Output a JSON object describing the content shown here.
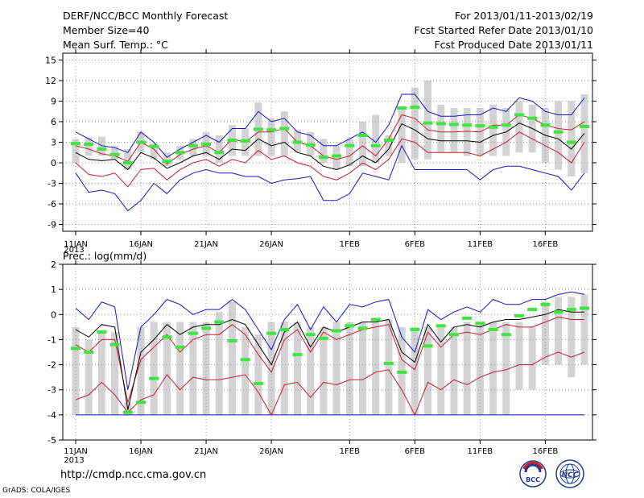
{
  "header": {
    "title": "DERF/NCC/BCC Monthly Forecast",
    "member_size": "Member Size=40",
    "variable": "Mean Surf. Temp.: °C",
    "period": "For 2013/01/11-2013/02/19",
    "start_date": "Fcst Started Refer Date 2013/01/10",
    "produced_date": "Fcst Produced Date 2013/01/11"
  },
  "footer": {
    "url": "http://cmdp.ncc.cma.gov.cn",
    "credit": "GrADS: COLA/IGES",
    "logo_left": "BCC",
    "logo_right": "NCC"
  },
  "colors": {
    "box": "#d3d3d6",
    "green": "#3ee63e",
    "blue": "#1414c8",
    "red": "#cc1c2c",
    "mean": "#000000",
    "grid": "#999999"
  },
  "chart_data": [
    {
      "type": "box-line",
      "title": "Mean Surf. Temp.: °C",
      "ylim": [
        -10,
        16
      ],
      "yticks": [
        -9,
        -6,
        -3,
        0,
        3,
        6,
        9,
        12,
        15
      ],
      "x_tick_labels": [
        "11JAN",
        "16JAN",
        "21JAN",
        "26JAN",
        "1FEB",
        "6FEB",
        "11FEB",
        "16FEB"
      ],
      "x_tick_days": [
        1,
        6,
        11,
        16,
        22,
        27,
        32,
        37
      ],
      "x_sublabel": "2013",
      "days": 40,
      "box_min": [
        0.0,
        1.0,
        1.0,
        0.5,
        -1.0,
        1.5,
        0.5,
        -0.5,
        0.5,
        1.0,
        1.0,
        0.0,
        1.0,
        1.0,
        1.0,
        1.0,
        1.0,
        1.5,
        1.0,
        0.0,
        -1.0,
        -0.5,
        -0.5,
        0.0,
        1.0,
        0.0,
        0.5,
        0.5,
        1.5,
        1.5,
        1.0,
        1.0,
        1.0,
        1.0,
        1.5,
        1.5,
        0.0,
        -1.0,
        -2.0,
        -1.5
      ],
      "box_max": [
        3.5,
        3.7,
        3.8,
        2.5,
        2.0,
        4.5,
        2.8,
        1.5,
        2.5,
        3.5,
        4.5,
        4.0,
        5.5,
        5.0,
        8.8,
        6.5,
        7.5,
        4.8,
        4.5,
        3.5,
        2.5,
        3.5,
        6.0,
        7.0,
        4.0,
        8.0,
        11.0,
        12.0,
        8.5,
        8.0,
        8.0,
        8.0,
        8.5,
        8.0,
        9.0,
        8.5,
        8.0,
        9.0,
        9.0,
        10.0
      ],
      "obs_green": [
        2.8,
        2.7,
        2.0,
        1.2,
        0.0,
        3.0,
        2.4,
        0.2,
        1.5,
        2.5,
        2.7,
        1.5,
        3.3,
        3.2,
        4.9,
        4.8,
        5.0,
        3.0,
        2.6,
        0.8,
        1.0,
        2.5,
        4.0,
        2.5,
        3.3,
        8.0,
        8.1,
        5.8,
        5.7,
        5.6,
        5.5,
        5.4,
        5.2,
        5.5,
        7.0,
        6.5,
        5.5,
        4.5,
        3.0,
        5.3
      ],
      "upper_blue": [
        4.5,
        3.5,
        2.5,
        2.2,
        1.5,
        4.5,
        3.0,
        0.8,
        2.0,
        3.0,
        4.0,
        3.0,
        5.0,
        5.0,
        7.5,
        6.0,
        6.5,
        4.5,
        4.0,
        2.5,
        2.5,
        3.5,
        4.5,
        3.0,
        5.5,
        10.0,
        10.0,
        7.5,
        6.8,
        6.8,
        7.0,
        7.0,
        8.0,
        7.5,
        9.5,
        9.0,
        7.5,
        7.0,
        7.0,
        9.5
      ],
      "upper_red": [
        2.5,
        2.0,
        1.3,
        1.0,
        0.2,
        3.0,
        2.0,
        -0.2,
        1.2,
        2.0,
        2.5,
        1.5,
        3.5,
        3.0,
        4.5,
        4.5,
        5.0,
        3.0,
        2.5,
        1.0,
        0.5,
        1.0,
        2.5,
        1.0,
        3.5,
        7.0,
        6.5,
        4.8,
        4.5,
        4.5,
        4.6,
        4.5,
        5.5,
        5.5,
        7.0,
        6.5,
        5.5,
        5.0,
        4.8,
        6.0
      ],
      "mean_black": [
        1.5,
        0.5,
        0.3,
        0.5,
        -1.0,
        1.5,
        0.7,
        -0.8,
        0.0,
        1.0,
        1.5,
        0.5,
        2.0,
        1.8,
        3.5,
        2.5,
        3.0,
        1.5,
        1.0,
        -0.5,
        -1.0,
        -0.3,
        1.0,
        0.0,
        2.0,
        5.7,
        4.8,
        3.5,
        3.2,
        3.2,
        3.2,
        3.0,
        4.0,
        4.5,
        5.8,
        5.0,
        4.0,
        3.5,
        2.0,
        4.3
      ],
      "lower_red": [
        0.0,
        -1.7,
        -2.0,
        -1.5,
        -3.5,
        -1.0,
        -0.8,
        -2.5,
        -1.0,
        0.0,
        0.5,
        -0.5,
        0.5,
        0.0,
        1.8,
        0.5,
        1.0,
        0.0,
        -0.5,
        -2.0,
        -2.5,
        -1.5,
        0.0,
        -1.0,
        0.5,
        3.5,
        3.0,
        1.5,
        1.5,
        1.5,
        1.5,
        1.0,
        2.0,
        3.0,
        4.5,
        3.5,
        2.5,
        1.5,
        0.0,
        3.0
      ],
      "lower_blue": [
        -1.5,
        -4.3,
        -4.0,
        -4.5,
        -7.0,
        -5.5,
        -3.0,
        -4.5,
        -2.5,
        -1.5,
        -1.0,
        -1.5,
        -1.5,
        -2.0,
        -2.0,
        -3.0,
        -2.5,
        -2.3,
        -2.0,
        -5.5,
        -5.5,
        -4.5,
        -1.5,
        -2.0,
        -2.5,
        2.5,
        -1.0,
        -1.0,
        -1.0,
        -1.0,
        -1.0,
        -2.5,
        -1.0,
        -0.5,
        -0.5,
        -1.0,
        -1.5,
        -2.0,
        -4.0,
        -1.5
      ]
    },
    {
      "type": "box-line",
      "title": "Prec.: log(mm/d)",
      "ylim": [
        -5,
        2
      ],
      "yticks": [
        -5,
        -4,
        -3,
        -2,
        -1,
        0,
        1,
        2
      ],
      "x_tick_labels": [
        "11JAN",
        "16JAN",
        "21JAN",
        "26JAN",
        "1FEB",
        "6FEB",
        "11FEB",
        "16FEB"
      ],
      "x_tick_days": [
        1,
        6,
        11,
        16,
        22,
        27,
        32,
        37
      ],
      "x_sublabel": "2013",
      "days": 40,
      "baseline": -4,
      "box_min": [
        -4.0,
        -4.0,
        -4.0,
        -4.0,
        -4.0,
        -4.0,
        -4.0,
        -4.0,
        -4.0,
        -4.0,
        -4.0,
        -4.0,
        -4.0,
        -4.0,
        -4.0,
        -4.0,
        -4.0,
        -4.0,
        -4.0,
        -4.0,
        -4.0,
        -4.0,
        -4.0,
        -4.0,
        -4.0,
        -4.0,
        -4.0,
        -4.0,
        -4.0,
        -4.0,
        -4.0,
        -4.0,
        -4.0,
        -4.0,
        -3.0,
        -3.0,
        -2.0,
        -2.0,
        -2.5,
        -2.0
      ],
      "box_max": [
        -0.5,
        -1.0,
        -0.7,
        -0.7,
        -3.5,
        -0.5,
        -0.3,
        -0.3,
        -0.3,
        -0.3,
        -0.3,
        0.1,
        0.5,
        -0.5,
        -0.8,
        -0.3,
        -0.3,
        -0.3,
        -0.5,
        -0.5,
        -0.3,
        -0.3,
        -0.3,
        -0.3,
        -0.2,
        -0.5,
        -0.5,
        -0.5,
        -0.5,
        -0.5,
        -0.3,
        -0.3,
        -0.3,
        -0.3,
        -0.3,
        -0.5,
        0.5,
        0.7,
        0.7,
        0.8
      ],
      "obs_green": [
        -1.35,
        -1.5,
        -0.7,
        -1.2,
        -3.9,
        -3.5,
        -2.55,
        -0.9,
        -1.3,
        -0.75,
        -0.55,
        -0.3,
        -1.05,
        -1.8,
        -2.75,
        -0.75,
        -0.6,
        -1.6,
        -0.8,
        -0.95,
        -0.65,
        -0.45,
        -0.55,
        -0.2,
        -1.95,
        -2.3,
        -0.6,
        -1.25,
        -0.45,
        -0.8,
        -0.15,
        -0.35,
        -0.6,
        -0.8,
        -0.05,
        0.2,
        0.4,
        0.1,
        0.2,
        0.25
      ],
      "upper_blue": [
        0.25,
        -0.2,
        0.5,
        0.3,
        -3.0,
        -0.5,
        0.0,
        0.6,
        0.4,
        0.0,
        0.2,
        0.2,
        0.6,
        0.2,
        -0.6,
        -1.4,
        -0.2,
        0.4,
        -0.6,
        0.3,
        -0.3,
        0.4,
        0.3,
        0.5,
        0.6,
        -0.9,
        -1.5,
        0.2,
        -0.2,
        0.1,
        0.3,
        0.1,
        0.6,
        0.4,
        0.4,
        0.6,
        0.6,
        0.8,
        0.9,
        0.8
      ],
      "upper_red": [
        -1.2,
        -1.5,
        -1.0,
        -1.0,
        -3.5,
        -1.8,
        -1.3,
        -0.8,
        -1.5,
        -1.0,
        -0.8,
        -0.8,
        -0.4,
        -0.8,
        -1.6,
        -2.3,
        -1.0,
        -0.6,
        -1.5,
        -0.7,
        -1.0,
        -0.8,
        -0.6,
        -0.5,
        -0.4,
        -1.8,
        -2.2,
        -0.7,
        -1.3,
        -0.8,
        -0.7,
        -0.8,
        -0.6,
        -0.4,
        -0.5,
        -0.5,
        -0.3,
        -0.1,
        -0.2,
        -0.2
      ],
      "mean_black": [
        -0.6,
        -0.9,
        -0.4,
        -0.5,
        -3.8,
        -1.5,
        -1.0,
        -0.4,
        -0.8,
        -0.5,
        -0.4,
        -0.4,
        -0.2,
        -0.4,
        -1.2,
        -2.0,
        -0.7,
        -0.3,
        -1.3,
        -0.5,
        -0.7,
        -0.5,
        -0.3,
        -0.3,
        -0.2,
        -1.5,
        -1.9,
        -0.4,
        -1.1,
        -0.5,
        -0.4,
        -0.5,
        -0.3,
        -0.2,
        -0.2,
        -0.1,
        0.0,
        0.2,
        0.1,
        0.1
      ],
      "lower_red": [
        -3.4,
        -3.2,
        -2.7,
        -3.2,
        -3.9,
        -3.4,
        -3.2,
        -2.4,
        -3.0,
        -2.5,
        -2.6,
        -2.6,
        -2.5,
        -2.4,
        -3.1,
        -4.0,
        -2.8,
        -2.7,
        -3.3,
        -2.7,
        -2.8,
        -2.6,
        -2.6,
        -2.3,
        -2.2,
        -3.0,
        -4.0,
        -2.7,
        -3.0,
        -2.6,
        -2.8,
        -2.5,
        -2.3,
        -2.2,
        -2.0,
        -2.0,
        -1.7,
        -1.5,
        -1.7,
        -1.5
      ],
      "lower_blue": [
        -4.0,
        -4.0,
        -4.0,
        -4.0,
        -4.0,
        -4.0,
        -4.0,
        -4.0,
        -4.0,
        -4.0,
        -4.0,
        -4.0,
        -4.0,
        -4.0,
        -4.0,
        -4.0,
        -4.0,
        -4.0,
        -4.0,
        -4.0,
        -4.0,
        -4.0,
        -4.0,
        -4.0,
        -4.0,
        -4.0,
        -4.0,
        -4.0,
        -4.0,
        -4.0,
        -4.0,
        -4.0,
        -4.0,
        -4.0,
        -4.0,
        -4.0,
        -4.0,
        -4.0,
        -4.0,
        -4.0
      ]
    }
  ]
}
